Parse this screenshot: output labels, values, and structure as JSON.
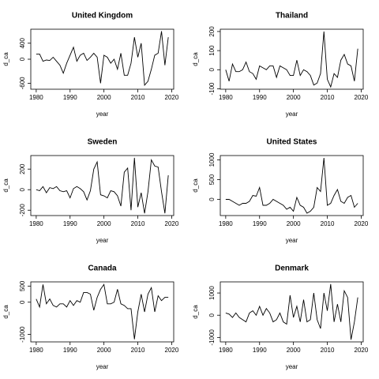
{
  "chart_data": [
    {
      "type": "line",
      "title": "United Kingdom",
      "xlabel": "year",
      "ylabel": "d_ca",
      "color": "#000000",
      "x": [
        1980,
        1981,
        1982,
        1983,
        1984,
        1985,
        1986,
        1987,
        1988,
        1989,
        1990,
        1991,
        1992,
        1993,
        1994,
        1995,
        1996,
        1997,
        1998,
        1999,
        2000,
        2001,
        2002,
        2003,
        2004,
        2005,
        2006,
        2007,
        2008,
        2009,
        2010,
        2011,
        2012,
        2013,
        2014,
        2015,
        2016,
        2017,
        2018,
        2019
      ],
      "values": [
        130,
        130,
        -50,
        -20,
        -30,
        50,
        -50,
        -150,
        -350,
        -100,
        100,
        300,
        -50,
        100,
        150,
        -30,
        50,
        150,
        50,
        -600,
        100,
        50,
        -100,
        0,
        -250,
        150,
        -400,
        -400,
        -100,
        550,
        50,
        400,
        -650,
        -550,
        -250,
        100,
        150,
        700,
        -150,
        550
      ],
      "xlim": [
        1978.4,
        2020.6
      ],
      "ylim": [
        -750,
        750
      ],
      "xticks": [
        1980,
        1990,
        2000,
        2010,
        2020
      ],
      "yticks": [
        -600,
        0,
        400
      ]
    },
    {
      "type": "line",
      "title": "Thailand",
      "xlabel": "year",
      "ylabel": "d_ca",
      "color": "#000000",
      "x": [
        1980,
        1981,
        1982,
        1983,
        1984,
        1985,
        1986,
        1987,
        1988,
        1989,
        1990,
        1991,
        1992,
        1993,
        1994,
        1995,
        1996,
        1997,
        1998,
        1999,
        2000,
        2001,
        2002,
        2003,
        2004,
        2005,
        2006,
        2007,
        2008,
        2009,
        2010,
        2011,
        2012,
        2013,
        2014,
        2015,
        2016,
        2017,
        2018,
        2019
      ],
      "values": [
        0,
        -60,
        30,
        -10,
        -10,
        0,
        40,
        -10,
        -20,
        -50,
        20,
        10,
        0,
        20,
        20,
        -40,
        20,
        10,
        0,
        -30,
        -30,
        50,
        -30,
        0,
        -10,
        -30,
        -80,
        -70,
        -20,
        200,
        -50,
        -90,
        -20,
        -40,
        50,
        80,
        30,
        20,
        -60,
        110
      ],
      "xlim": [
        1978.4,
        2020.6
      ],
      "ylim": [
        -102,
        212
      ],
      "xticks": [
        1980,
        1990,
        2000,
        2010,
        2020
      ],
      "yticks": [
        -100,
        0,
        100,
        200
      ]
    },
    {
      "type": "line",
      "title": "Sweden",
      "xlabel": "year",
      "ylabel": "d_ca",
      "color": "#000000",
      "x": [
        1980,
        1981,
        1982,
        1983,
        1984,
        1985,
        1986,
        1987,
        1988,
        1989,
        1990,
        1991,
        1992,
        1993,
        1994,
        1995,
        1996,
        1997,
        1998,
        1999,
        2000,
        2001,
        2002,
        2003,
        2004,
        2005,
        2006,
        2007,
        2008,
        2009,
        2010,
        2011,
        2012,
        2013,
        2014,
        2015,
        2016,
        2017,
        2018,
        2019
      ],
      "values": [
        0,
        -10,
        30,
        -30,
        20,
        10,
        30,
        -10,
        -20,
        -10,
        -80,
        10,
        30,
        10,
        -20,
        -100,
        -10,
        200,
        270,
        -50,
        -60,
        -80,
        -10,
        -20,
        -60,
        -160,
        170,
        210,
        -200,
        310,
        -170,
        -30,
        -230,
        -20,
        290,
        230,
        220,
        -20,
        -230,
        140
      ],
      "xlim": [
        1978.4,
        2020.6
      ],
      "ylim": [
        -252,
        332
      ],
      "xticks": [
        1980,
        1990,
        2000,
        2010,
        2020
      ],
      "yticks": [
        -200,
        0,
        200
      ]
    },
    {
      "type": "line",
      "title": "United States",
      "xlabel": "year",
      "ylabel": "d_ca",
      "color": "#000000",
      "x": [
        1980,
        1981,
        1982,
        1983,
        1984,
        1985,
        1986,
        1987,
        1988,
        1989,
        1990,
        1991,
        1992,
        1993,
        1994,
        1995,
        1996,
        1997,
        1998,
        1999,
        2000,
        2001,
        2002,
        2003,
        2004,
        2005,
        2006,
        2007,
        2008,
        2009,
        2010,
        2011,
        2012,
        2013,
        2014,
        2015,
        2016,
        2017,
        2018,
        2019
      ],
      "values": [
        0,
        0,
        -50,
        -100,
        -150,
        -100,
        -100,
        -50,
        100,
        80,
        300,
        -150,
        -150,
        -100,
        0,
        -50,
        -100,
        -150,
        -250,
        -200,
        -300,
        50,
        -150,
        -200,
        -350,
        -300,
        -200,
        300,
        200,
        1050,
        -150,
        -100,
        100,
        250,
        -50,
        -100,
        50,
        100,
        -200,
        -100
      ],
      "xlim": [
        1978.4,
        2020.6
      ],
      "ylim": [
        -410,
        1110
      ],
      "xticks": [
        1980,
        1990,
        2000,
        2010,
        2020
      ],
      "yticks": [
        0,
        500,
        1000
      ]
    },
    {
      "type": "line",
      "title": "Canada",
      "xlabel": "year",
      "ylabel": "d_ca",
      "color": "#000000",
      "x": [
        1980,
        1981,
        1982,
        1983,
        1984,
        1985,
        1986,
        1987,
        1988,
        1989,
        1990,
        1991,
        1992,
        1993,
        1994,
        1995,
        1996,
        1997,
        1998,
        1999,
        2000,
        2001,
        2002,
        2003,
        2004,
        2005,
        2006,
        2007,
        2008,
        2009,
        2010,
        2011,
        2012,
        2013,
        2014,
        2015,
        2016,
        2017,
        2018,
        2019
      ],
      "values": [
        100,
        -150,
        550,
        -50,
        100,
        -100,
        -150,
        -50,
        -50,
        -150,
        50,
        -100,
        50,
        0,
        300,
        300,
        250,
        -250,
        150,
        400,
        550,
        -50,
        -50,
        0,
        400,
        -50,
        -100,
        -200,
        -200,
        -1150,
        -300,
        250,
        -300,
        250,
        450,
        -300,
        200,
        50,
        150,
        150
      ],
      "xlim": [
        1978.4,
        2020.6
      ],
      "ylim": [
        -1230,
        630
      ],
      "xticks": [
        1980,
        1990,
        2000,
        2010,
        2020
      ],
      "yticks": [
        -1000,
        0,
        500
      ]
    },
    {
      "type": "line",
      "title": "Denmark",
      "xlabel": "year",
      "ylabel": "d_ca",
      "color": "#000000",
      "x": [
        1980,
        1981,
        1982,
        1983,
        1984,
        1985,
        1986,
        1987,
        1988,
        1989,
        1990,
        1991,
        1992,
        1993,
        1994,
        1995,
        1996,
        1997,
        1998,
        1999,
        2000,
        2001,
        2002,
        2003,
        2004,
        2005,
        2006,
        2007,
        2008,
        2009,
        2010,
        2011,
        2012,
        2013,
        2014,
        2015,
        2016,
        2017,
        2018,
        2019
      ],
      "values": [
        100,
        50,
        -100,
        100,
        -100,
        -200,
        -300,
        100,
        200,
        0,
        400,
        0,
        300,
        100,
        -300,
        -200,
        100,
        -300,
        -400,
        900,
        -100,
        400,
        -300,
        700,
        -300,
        -200,
        1000,
        -200,
        -600,
        1000,
        200,
        1400,
        -300,
        500,
        -300,
        1100,
        800,
        -1100,
        -300,
        800
      ],
      "xlim": [
        1978.4,
        2020.6
      ],
      "ylim": [
        -1200,
        1500
      ],
      "xticks": [
        1980,
        1990,
        2000,
        2010,
        2020
      ],
      "yticks": [
        -1000,
        0,
        1000
      ]
    }
  ]
}
